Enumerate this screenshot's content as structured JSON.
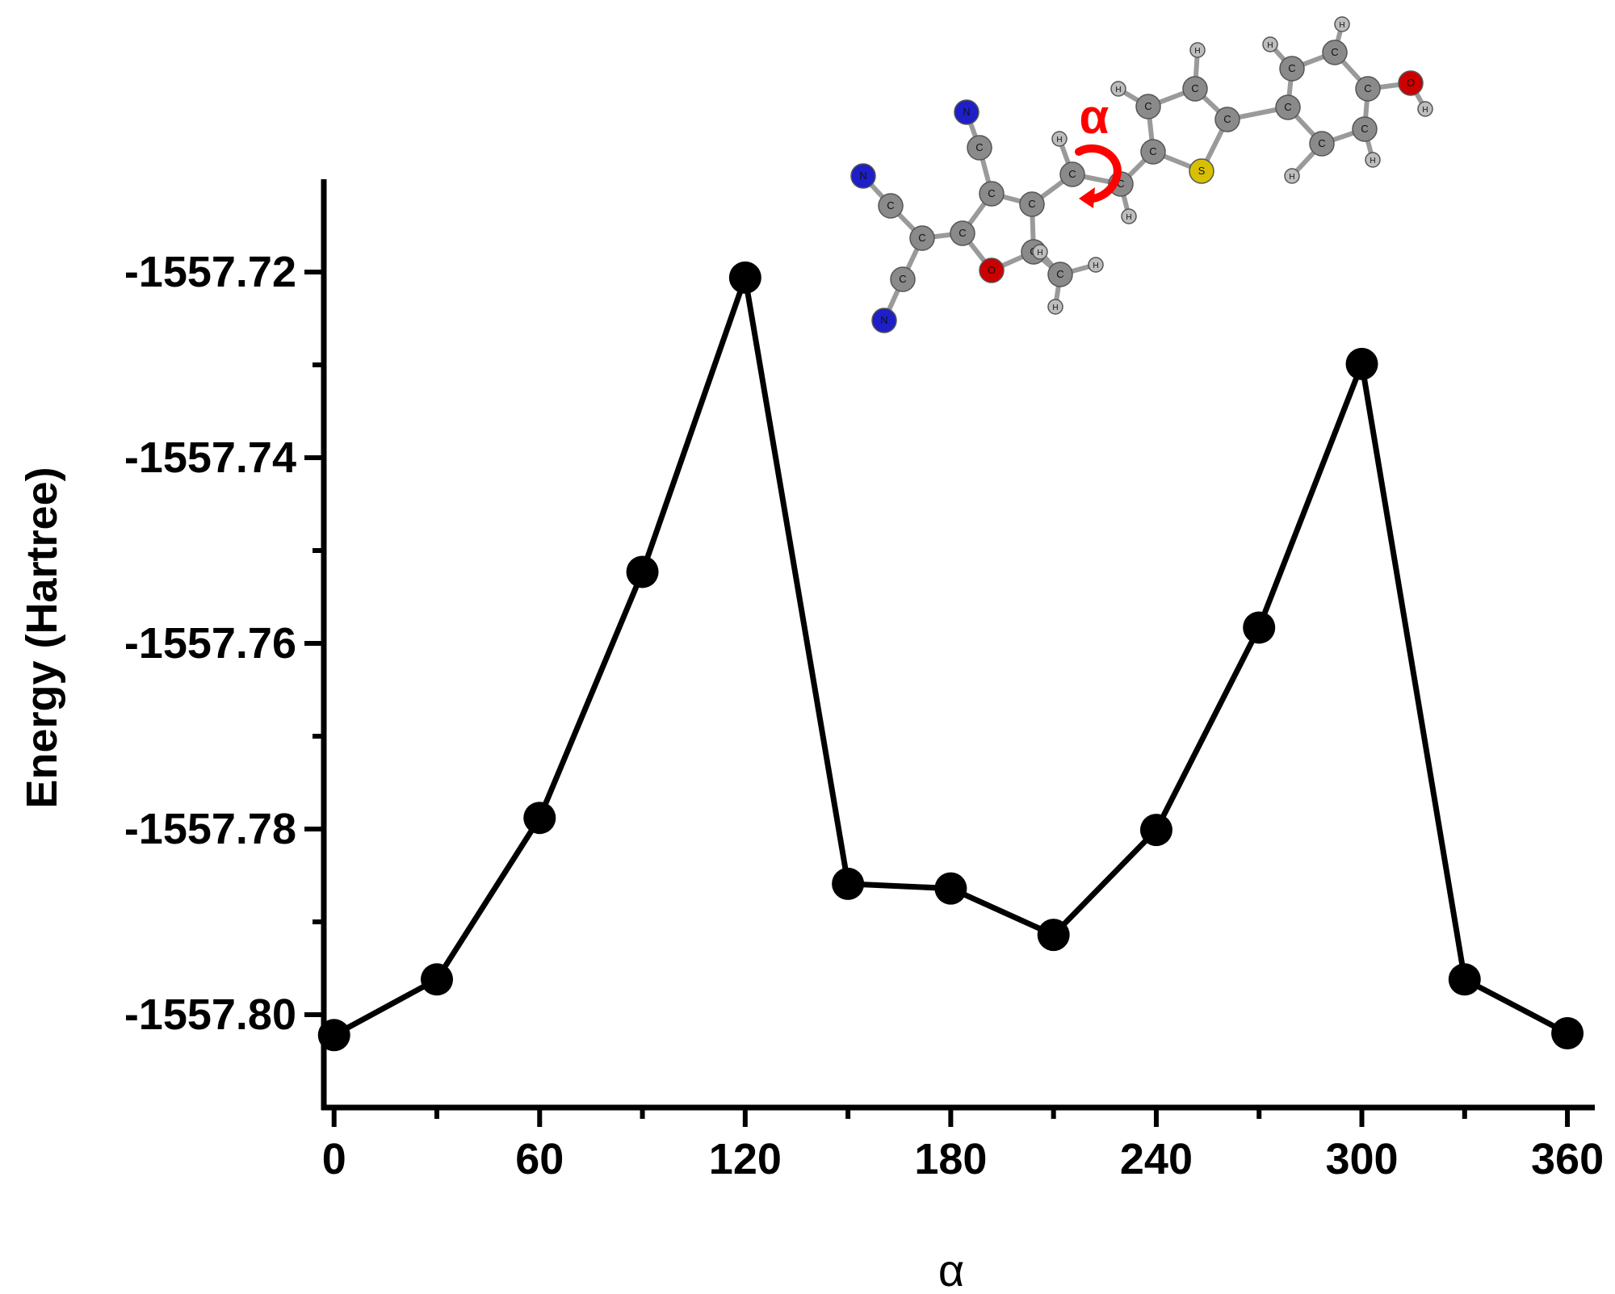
{
  "chart_data": {
    "type": "line",
    "title": "",
    "xlabel": "α",
    "ylabel": "Energy (Hartree)",
    "x": [
      0,
      30,
      60,
      90,
      120,
      150,
      180,
      210,
      240,
      270,
      300,
      330,
      360
    ],
    "series": [
      {
        "values": [
          -1557.8022,
          -1557.7962,
          -1557.7788,
          -1557.7523,
          -1557.7206,
          -1557.7859,
          -1557.7864,
          -1557.7914,
          -1557.7801,
          -1557.7583,
          -1557.7299,
          -1557.7962,
          -1557.802
        ]
      }
    ],
    "xlim": [
      -3,
      368
    ],
    "ylim": [
      -1557.81,
      -1557.71
    ],
    "x_ticks_major": [
      0,
      60,
      120,
      180,
      240,
      300,
      360
    ],
    "x_ticks_minor": [
      30,
      90,
      150,
      210,
      270,
      330
    ],
    "x_tick_labels": [
      "0",
      "60",
      "120",
      "180",
      "240",
      "300",
      "360"
    ],
    "y_ticks_major": [
      -1557.72,
      -1557.74,
      -1557.76,
      -1557.78,
      -1557.8
    ],
    "y_ticks_minor": [
      -1557.73,
      -1557.75,
      -1557.77,
      -1557.79
    ],
    "y_tick_labels": [
      "-1557.72",
      "-1557.74",
      "-1557.76",
      "-1557.78",
      "-1557.80"
    ],
    "grid": false,
    "legend": "none",
    "line_color": "#000000",
    "marker": "filled-circle",
    "inset": {
      "description_icon": "molecule-structure-icon",
      "rotation_label": "α",
      "rotation_color": "#ff0000",
      "atom_colors": {
        "C": "#8a8a8a",
        "N": "#1f1fc8",
        "O": "#cc0000",
        "S": "#d8c000",
        "H": "#bdbdbd"
      },
      "atom_labels": {
        "C": "C",
        "N": "N",
        "O": "O",
        "S": "S",
        "H": "H"
      }
    }
  }
}
